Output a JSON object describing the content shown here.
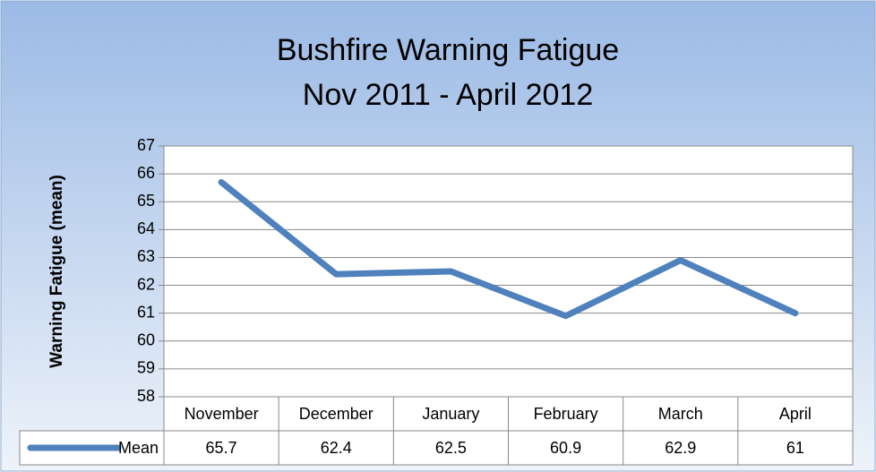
{
  "chart_data": {
    "type": "line",
    "title": "Bushfire Warning Fatigue",
    "subtitle": "Nov 2011 - April 2012",
    "y_label": "Warning Fatigue  (mean)",
    "categories": [
      "November",
      "December",
      "January",
      "February",
      "March",
      "April"
    ],
    "series": [
      {
        "name": "Mean",
        "color": "#4f81bd",
        "values": [
          65.7,
          62.4,
          62.5,
          60.9,
          62.9,
          61
        ]
      }
    ],
    "ylim": [
      58,
      67
    ],
    "yticks": [
      58,
      59,
      60,
      61,
      62,
      63,
      64,
      65,
      66,
      67
    ],
    "grid": true,
    "data_table": true
  }
}
